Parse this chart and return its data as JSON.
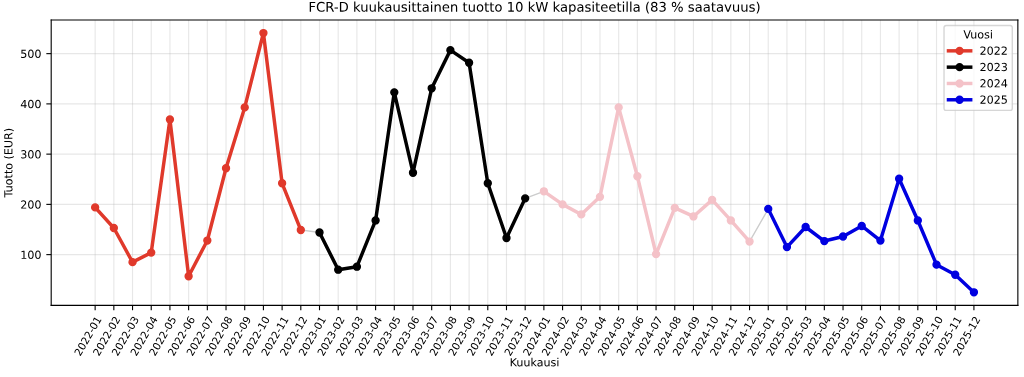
{
  "chart_data": {
    "type": "line",
    "title": "FCR-D kuukausittainen tuotto 10 kW kapasiteetilla (83 % saatavuus)",
    "xlabel": "Kuukausi",
    "ylabel": "Tuotto (EUR)",
    "legend_title": "Vuosi",
    "categories": [
      "2022-01",
      "2022-02",
      "2022-03",
      "2022-04",
      "2022-05",
      "2022-06",
      "2022-07",
      "2022-08",
      "2022-09",
      "2022-10",
      "2022-11",
      "2022-12",
      "2023-01",
      "2023-02",
      "2023-03",
      "2023-04",
      "2023-05",
      "2023-06",
      "2023-07",
      "2023-08",
      "2023-09",
      "2023-10",
      "2023-11",
      "2023-12",
      "2024-01",
      "2024-02",
      "2024-03",
      "2024-04",
      "2024-05",
      "2024-06",
      "2024-07",
      "2024-08",
      "2024-09",
      "2024-10",
      "2024-11",
      "2024-12",
      "2025-01",
      "2025-02",
      "2025-03",
      "2025-04",
      "2025-05",
      "2025-06",
      "2025-07",
      "2025-08",
      "2025-09",
      "2025-10",
      "2025-11",
      "2025-12"
    ],
    "series": [
      {
        "color": "#cccccc",
        "marker": "none",
        "values": [
          null,
          null,
          null,
          null,
          null,
          null,
          null,
          null,
          null,
          null,
          null,
          149,
          144,
          null,
          null,
          null,
          null,
          null,
          null,
          null,
          null,
          null,
          null,
          212,
          226,
          null,
          null,
          null,
          null,
          null,
          null,
          null,
          null,
          null,
          null,
          126,
          191,
          null,
          null,
          null,
          null,
          null,
          null,
          null,
          null,
          null,
          null,
          null
        ]
      },
      {
        "name": "2022",
        "color": "#e0392b",
        "values": [
          194,
          153,
          85,
          104,
          369,
          57,
          128,
          272,
          393,
          541,
          242,
          149,
          null,
          null,
          null,
          null,
          null,
          null,
          null,
          null,
          null,
          null,
          null,
          null,
          null,
          null,
          null,
          null,
          null,
          null,
          null,
          null,
          null,
          null,
          null,
          null,
          null,
          null,
          null,
          null,
          null,
          null,
          null,
          null,
          null,
          null,
          null,
          null
        ]
      },
      {
        "name": "2023",
        "color": "#000000",
        "values": [
          null,
          null,
          null,
          null,
          null,
          null,
          null,
          null,
          null,
          null,
          null,
          null,
          144,
          70,
          76,
          168,
          423,
          263,
          431,
          507,
          482,
          242,
          133,
          212,
          null,
          null,
          null,
          null,
          null,
          null,
          null,
          null,
          null,
          null,
          null,
          null,
          null,
          null,
          null,
          null,
          null,
          null,
          null,
          null,
          null,
          null,
          null,
          null
        ]
      },
      {
        "name": "2024",
        "color": "#f4c2c8",
        "values": [
          null,
          null,
          null,
          null,
          null,
          null,
          null,
          null,
          null,
          null,
          null,
          null,
          null,
          null,
          null,
          null,
          null,
          null,
          null,
          null,
          null,
          null,
          null,
          null,
          226,
          200,
          180,
          215,
          393,
          256,
          101,
          193,
          176,
          209,
          168,
          126,
          null,
          null,
          null,
          null,
          null,
          null,
          null,
          null,
          null,
          null,
          null,
          null
        ]
      },
      {
        "name": "2025",
        "color": "#0000e0",
        "values": [
          null,
          null,
          null,
          null,
          null,
          null,
          null,
          null,
          null,
          null,
          null,
          null,
          null,
          null,
          null,
          null,
          null,
          null,
          null,
          null,
          null,
          null,
          null,
          null,
          null,
          null,
          null,
          null,
          null,
          null,
          null,
          null,
          null,
          null,
          null,
          null,
          191,
          115,
          155,
          127,
          136,
          157,
          128,
          251,
          168,
          80,
          60,
          25
        ]
      }
    ],
    "ylim": [
      -1,
      567
    ],
    "yticks": [
      100,
      200,
      300,
      400,
      500
    ],
    "grid": true,
    "legend": "top right",
    "marker": "circle",
    "line_style": "solid"
  }
}
